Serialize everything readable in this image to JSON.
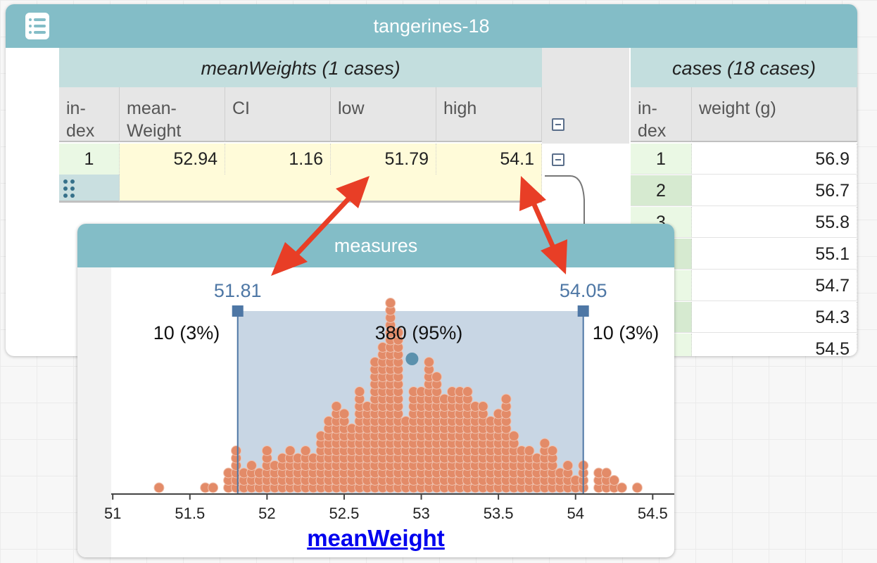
{
  "table_window": {
    "title": "tangerines-18",
    "icon": "table-icon",
    "parent": {
      "title": "meanWeights (1 cases)",
      "columns": [
        "in-\ndex",
        "mean-\nWeight",
        "CI",
        "low",
        "high"
      ],
      "rows": [
        {
          "index": "1",
          "meanWeight": "52.94",
          "CI": "1.16",
          "low": "51.79",
          "high": "54.1"
        }
      ]
    },
    "child": {
      "title": "cases (18 cases)",
      "columns": [
        "in-\ndex",
        "weight (g)"
      ],
      "rows": [
        {
          "index": "1",
          "weight": "56.9"
        },
        {
          "index": "2",
          "weight": "56.7"
        },
        {
          "index": "3",
          "weight": "55.8"
        },
        {
          "index": "",
          "weight": "55.1"
        },
        {
          "index": "",
          "weight": "54.7"
        },
        {
          "index": "",
          "weight": "54.3"
        },
        {
          "index": "",
          "weight": "54.5"
        }
      ]
    }
  },
  "graph_window": {
    "title": "measures",
    "x_axis_label": "meanWeight",
    "left_bound": "51.81",
    "right_bound": "54.05",
    "left_count": "10 (3%)",
    "middle_count": "380 (95%)",
    "right_count": "10 (3%)",
    "colors": {
      "dot": "#e38b68",
      "dot_stroke": "#f0c3b0",
      "interval": "#c8d6e4",
      "bound": "#4e77a5",
      "mean_dot": "#5b91ad"
    }
  },
  "chart_data": {
    "type": "scatter",
    "xlabel": "meanWeight",
    "xlim": [
      50.99,
      54.64
    ],
    "xticks": [
      51,
      51.5,
      52,
      52.5,
      53,
      53.5,
      54,
      54.5
    ],
    "interval": [
      51.81,
      54.05
    ],
    "mean": 52.94,
    "histogram_bin_width": 0.05,
    "histogram": [
      [
        51.3,
        1
      ],
      [
        51.6,
        1
      ],
      [
        51.65,
        1
      ],
      [
        51.75,
        3
      ],
      [
        51.8,
        6
      ],
      [
        51.85,
        3
      ],
      [
        51.9,
        4
      ],
      [
        51.95,
        3
      ],
      [
        52.0,
        6
      ],
      [
        52.05,
        4
      ],
      [
        52.1,
        5
      ],
      [
        52.15,
        6
      ],
      [
        52.2,
        5
      ],
      [
        52.25,
        6
      ],
      [
        52.3,
        5
      ],
      [
        52.35,
        8
      ],
      [
        52.4,
        10
      ],
      [
        52.45,
        12
      ],
      [
        52.5,
        11
      ],
      [
        52.55,
        9
      ],
      [
        52.6,
        14
      ],
      [
        52.65,
        12
      ],
      [
        52.7,
        18
      ],
      [
        52.75,
        20
      ],
      [
        52.8,
        26
      ],
      [
        52.85,
        22
      ],
      [
        52.9,
        10
      ],
      [
        52.95,
        14
      ],
      [
        53.0,
        14
      ],
      [
        53.05,
        18
      ],
      [
        53.1,
        16
      ],
      [
        53.15,
        13
      ],
      [
        53.2,
        14
      ],
      [
        53.25,
        14
      ],
      [
        53.3,
        14
      ],
      [
        53.35,
        12
      ],
      [
        53.4,
        12
      ],
      [
        53.45,
        10
      ],
      [
        53.5,
        11
      ],
      [
        53.55,
        13
      ],
      [
        53.6,
        8
      ],
      [
        53.65,
        6
      ],
      [
        53.7,
        6
      ],
      [
        53.75,
        5
      ],
      [
        53.8,
        7
      ],
      [
        53.85,
        6
      ],
      [
        53.9,
        3
      ],
      [
        53.95,
        4
      ],
      [
        54.0,
        2
      ],
      [
        54.05,
        4
      ],
      [
        54.15,
        3
      ],
      [
        54.2,
        3
      ],
      [
        54.25,
        2
      ],
      [
        54.3,
        1
      ],
      [
        54.4,
        1
      ]
    ]
  }
}
